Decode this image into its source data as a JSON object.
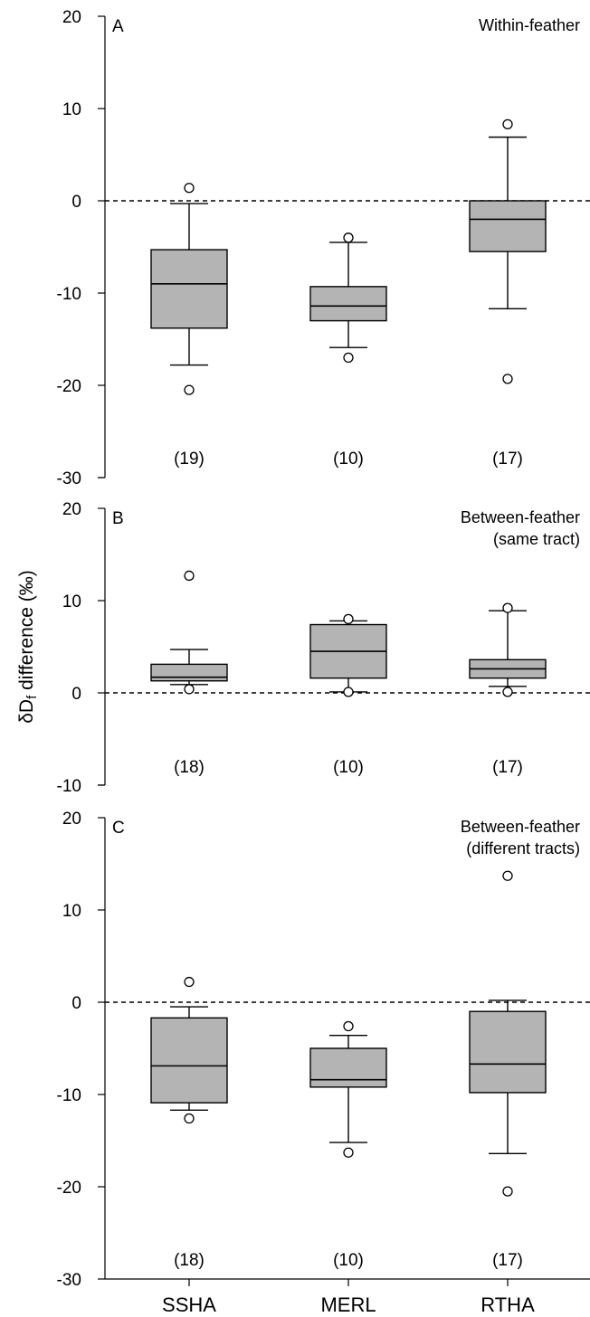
{
  "y_axis_title": {
    "symbol": "δD",
    "subscript": "f",
    "rest": " difference (‰)"
  },
  "categories": [
    "SSHA",
    "MERL",
    "RTHA"
  ],
  "colors": {
    "box_fill": "#b4b4b4",
    "line": "#000000"
  },
  "chart_data": [
    {
      "type": "box",
      "panel": "A",
      "title_lines": [
        "Within-feather"
      ],
      "ylim": [
        -30,
        20
      ],
      "y_ticks": [
        20,
        10,
        0,
        -10,
        -20,
        -30
      ],
      "reference_line": 0,
      "categories": [
        "SSHA",
        "MERL",
        "RTHA"
      ],
      "boxes": [
        {
          "category": "SSHA",
          "whisker_low": -17.8,
          "q1": -13.8,
          "median": -9.0,
          "q3": -5.3,
          "whisker_high": -0.3,
          "outliers": [
            1.4,
            -20.5
          ],
          "n_label": "(19)"
        },
        {
          "category": "MERL",
          "whisker_low": -15.9,
          "q1": -13.0,
          "median": -11.4,
          "q3": -9.3,
          "whisker_high": -4.5,
          "outliers": [
            -4.0,
            -17.0
          ],
          "n_label": "(10)"
        },
        {
          "category": "RTHA",
          "whisker_low": -11.7,
          "q1": -5.5,
          "median": -2.0,
          "q3": 0.0,
          "whisker_high": 6.9,
          "outliers": [
            8.3,
            -19.3
          ],
          "n_label": "(17)"
        }
      ]
    },
    {
      "type": "box",
      "panel": "B",
      "title_lines": [
        "Between-feather",
        "(same tract)"
      ],
      "ylim": [
        -10,
        20
      ],
      "y_ticks": [
        20,
        10,
        0,
        -10
      ],
      "reference_line": 0,
      "categories": [
        "SSHA",
        "MERL",
        "RTHA"
      ],
      "boxes": [
        {
          "category": "SSHA",
          "whisker_low": 0.9,
          "q1": 1.3,
          "median": 1.7,
          "q3": 3.1,
          "whisker_high": 4.7,
          "outliers": [
            12.7,
            0.4
          ],
          "n_label": "(18)"
        },
        {
          "category": "MERL",
          "whisker_low": 0.1,
          "q1": 1.6,
          "median": 4.5,
          "q3": 7.4,
          "whisker_high": 7.8,
          "outliers": [
            8.0,
            0.1
          ],
          "n_label": "(10)"
        },
        {
          "category": "RTHA",
          "whisker_low": 0.7,
          "q1": 1.6,
          "median": 2.6,
          "q3": 3.6,
          "whisker_high": 8.9,
          "outliers": [
            9.2,
            0.1
          ],
          "n_label": "(17)"
        }
      ]
    },
    {
      "type": "box",
      "panel": "C",
      "title_lines": [
        "Between-feather",
        "(different tracts)"
      ],
      "ylim": [
        -30,
        20
      ],
      "y_ticks": [
        20,
        10,
        0,
        -10,
        -20,
        -30
      ],
      "reference_line": 0,
      "categories": [
        "SSHA",
        "MERL",
        "RTHA"
      ],
      "boxes": [
        {
          "category": "SSHA",
          "whisker_low": -11.7,
          "q1": -10.9,
          "median": -6.9,
          "q3": -1.7,
          "whisker_high": -0.5,
          "outliers": [
            2.2,
            -12.6
          ],
          "n_label": "(18)"
        },
        {
          "category": "MERL",
          "whisker_low": -15.2,
          "q1": -9.2,
          "median": -8.4,
          "q3": -5.0,
          "whisker_high": -3.6,
          "outliers": [
            -2.6,
            -16.3
          ],
          "n_label": "(10)"
        },
        {
          "category": "RTHA",
          "whisker_low": -16.4,
          "q1": -9.8,
          "median": -6.7,
          "q3": -1.0,
          "whisker_high": 0.2,
          "outliers": [
            13.7,
            -20.5
          ],
          "n_label": "(17)"
        }
      ]
    }
  ]
}
